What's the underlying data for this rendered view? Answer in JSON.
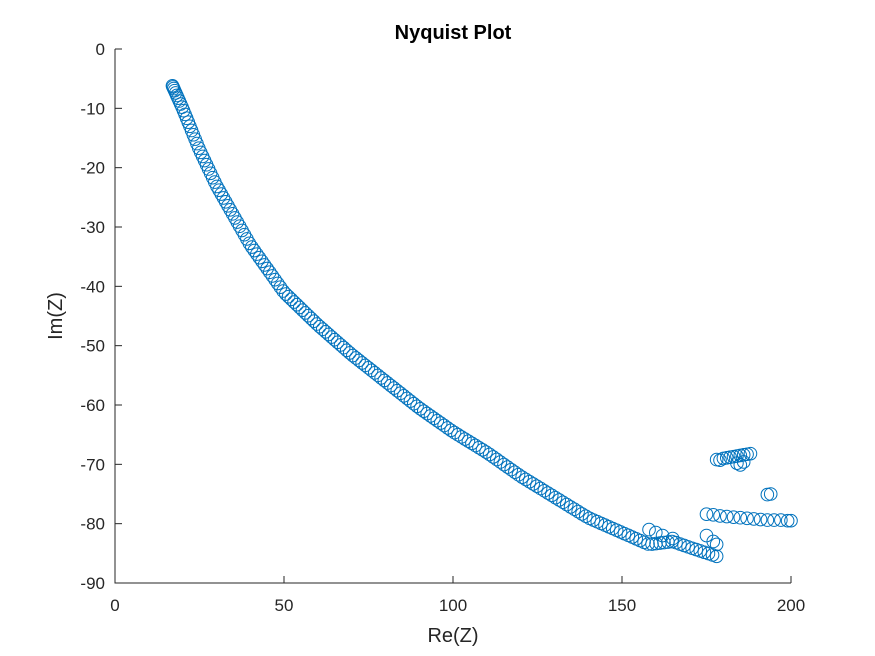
{
  "chart_data": {
    "type": "scatter",
    "title": "Nyquist Plot",
    "xlabel": "Re(Z)",
    "ylabel": "Im(Z)",
    "xlim": [
      0,
      200
    ],
    "ylim": [
      -90,
      0
    ],
    "xticks": [
      0,
      50,
      100,
      150,
      200
    ],
    "yticks": [
      0,
      -10,
      -20,
      -30,
      -40,
      -50,
      -60,
      -70,
      -80,
      -90
    ],
    "marker": "open-circle",
    "color": "#0072BD",
    "series": [
      {
        "main_curve": {
          "x_start": 17,
          "x_end": 178,
          "points": 180,
          "anchors": [
            [
              17,
              -6.2
            ],
            [
              20,
              -10
            ],
            [
              25,
              -17
            ],
            [
              30,
              -23
            ],
            [
              40,
              -33
            ],
            [
              50,
              -41
            ],
            [
              60,
              -46.5
            ],
            [
              70,
              -51.5
            ],
            [
              80,
              -56
            ],
            [
              90,
              -60.5
            ],
            [
              100,
              -64.5
            ],
            [
              110,
              -68
            ],
            [
              120,
              -72
            ],
            [
              130,
              -75.5
            ],
            [
              140,
              -79
            ],
            [
              150,
              -81.5
            ],
            [
              158,
              -83.5
            ],
            [
              165,
              -83
            ],
            [
              170,
              -84
            ],
            [
              178,
              -85.5
            ]
          ]
        },
        "points": [
          [
            158,
            -81
          ],
          [
            160,
            -81.5
          ],
          [
            162,
            -82
          ],
          [
            165,
            -82.5
          ],
          [
            175,
            -82
          ],
          [
            177,
            -83
          ],
          [
            178,
            -83.5
          ],
          [
            178,
            -69.2
          ],
          [
            179,
            -69.3
          ],
          [
            180,
            -69
          ],
          [
            181,
            -68.9
          ],
          [
            182,
            -68.8
          ],
          [
            183,
            -68.7
          ],
          [
            184,
            -68.6
          ],
          [
            185,
            -68.5
          ],
          [
            186,
            -68.4
          ],
          [
            187,
            -68.3
          ],
          [
            188,
            -68.2
          ],
          [
            184,
            -69.8
          ],
          [
            185,
            -70.1
          ],
          [
            186,
            -69.6
          ],
          [
            193,
            -75.1
          ],
          [
            194,
            -75.0
          ],
          [
            175,
            -78.4
          ],
          [
            177,
            -78.5
          ],
          [
            179,
            -78.7
          ],
          [
            181,
            -78.8
          ],
          [
            183,
            -78.9
          ],
          [
            185,
            -79.0
          ],
          [
            187,
            -79.1
          ],
          [
            189,
            -79.2
          ],
          [
            191,
            -79.3
          ],
          [
            193,
            -79.4
          ],
          [
            195,
            -79.4
          ],
          [
            197,
            -79.4
          ],
          [
            199,
            -79.5
          ],
          [
            200,
            -79.5
          ]
        ]
      }
    ]
  }
}
